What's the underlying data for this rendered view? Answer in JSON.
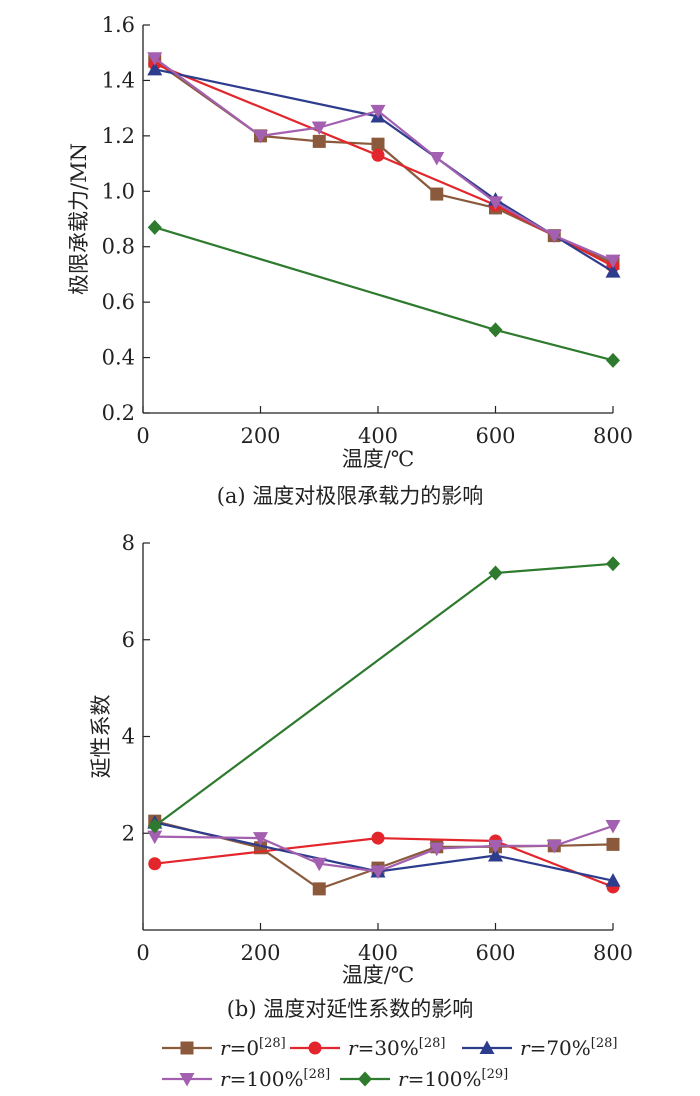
{
  "chart_data": [
    {
      "type": "line",
      "title": "",
      "caption": "(a) 温度对极限承载力的影响",
      "xlabel": "温度/℃",
      "ylabel": "极限承载力/MN",
      "xlim": [
        0,
        800
      ],
      "ylim": [
        0.2,
        1.6
      ],
      "xticks": [
        0,
        200,
        400,
        600,
        800
      ],
      "xtick_labels": [
        "0",
        "200",
        "400",
        "600",
        "800"
      ],
      "yticks": [
        0.2,
        0.4,
        0.6,
        0.8,
        1.0,
        1.2,
        1.4,
        1.6
      ],
      "ytick_labels": [
        "0.2",
        "0.4",
        "0.6",
        "0.8",
        "1.0",
        "1.2",
        "1.4",
        "1.6"
      ],
      "grid": false,
      "series": [
        {
          "key": "s0",
          "x": [
            20,
            200,
            300,
            400,
            500,
            600,
            700,
            800
          ],
          "y": [
            1.47,
            1.2,
            1.18,
            1.17,
            0.99,
            0.94,
            0.84,
            0.74
          ]
        },
        {
          "key": "s1",
          "x": [
            20,
            400,
            600,
            800
          ],
          "y": [
            1.46,
            1.13,
            0.95,
            0.73
          ]
        },
        {
          "key": "s2",
          "x": [
            20,
            400,
            600,
            800
          ],
          "y": [
            1.44,
            1.27,
            0.97,
            0.71
          ]
        },
        {
          "key": "s3",
          "x": [
            20,
            200,
            300,
            400,
            500,
            600,
            700,
            800
          ],
          "y": [
            1.48,
            1.2,
            1.23,
            1.29,
            1.12,
            0.96,
            0.84,
            0.75
          ]
        },
        {
          "key": "s4",
          "x": [
            20,
            600,
            800
          ],
          "y": [
            0.87,
            0.5,
            0.39
          ]
        }
      ]
    },
    {
      "type": "line",
      "title": "",
      "caption": "(b) 温度对延性系数的影响",
      "xlabel": "温度/℃",
      "ylabel": "延性系数",
      "xlim": [
        0,
        800
      ],
      "ylim": [
        0,
        8
      ],
      "xticks": [
        0,
        200,
        400,
        600,
        800
      ],
      "xtick_labels": [
        "0",
        "200",
        "400",
        "600",
        "800"
      ],
      "yticks": [
        2,
        4,
        6,
        8
      ],
      "ytick_labels": [
        "2",
        "4",
        "6",
        "8"
      ],
      "grid": false,
      "series": [
        {
          "key": "s0",
          "x": [
            20,
            200,
            300,
            400,
            500,
            600,
            700,
            800
          ],
          "y": [
            2.25,
            1.7,
            0.85,
            1.28,
            1.72,
            1.72,
            1.74,
            1.77
          ]
        },
        {
          "key": "s1",
          "x": [
            20,
            400,
            600,
            800
          ],
          "y": [
            1.37,
            1.9,
            1.84,
            0.89
          ]
        },
        {
          "key": "s2",
          "x": [
            20,
            400,
            600,
            800
          ],
          "y": [
            2.22,
            1.21,
            1.54,
            1.02
          ]
        },
        {
          "key": "s3",
          "x": [
            20,
            200,
            300,
            400,
            500,
            600,
            700,
            800
          ],
          "y": [
            1.93,
            1.9,
            1.37,
            1.21,
            1.68,
            1.74,
            1.74,
            2.15
          ]
        },
        {
          "key": "s4",
          "x": [
            20,
            600,
            800
          ],
          "y": [
            2.15,
            7.38,
            7.57
          ]
        }
      ]
    }
  ],
  "legend": {
    "placement": "bottom",
    "entries": [
      {
        "key": "s0",
        "name_var": "r",
        "name_value": "=0",
        "ref": "[28]",
        "color": "#8B5A3C",
        "marker": "square"
      },
      {
        "key": "s1",
        "name_var": "r",
        "name_value": "=30%",
        "ref": "[28]",
        "color": "#E3262B",
        "marker": "circle"
      },
      {
        "key": "s2",
        "name_var": "r",
        "name_value": "=70%",
        "ref": "[28]",
        "color": "#2E3C8E",
        "marker": "triangle-up"
      },
      {
        "key": "s3",
        "name_var": "r",
        "name_value": "=100%",
        "ref": "[28]",
        "color": "#A460B0",
        "marker": "triangle-down"
      },
      {
        "key": "s4",
        "name_var": "r",
        "name_value": "=100%",
        "ref": "[29]",
        "color": "#2E7A2E",
        "marker": "diamond"
      }
    ]
  }
}
